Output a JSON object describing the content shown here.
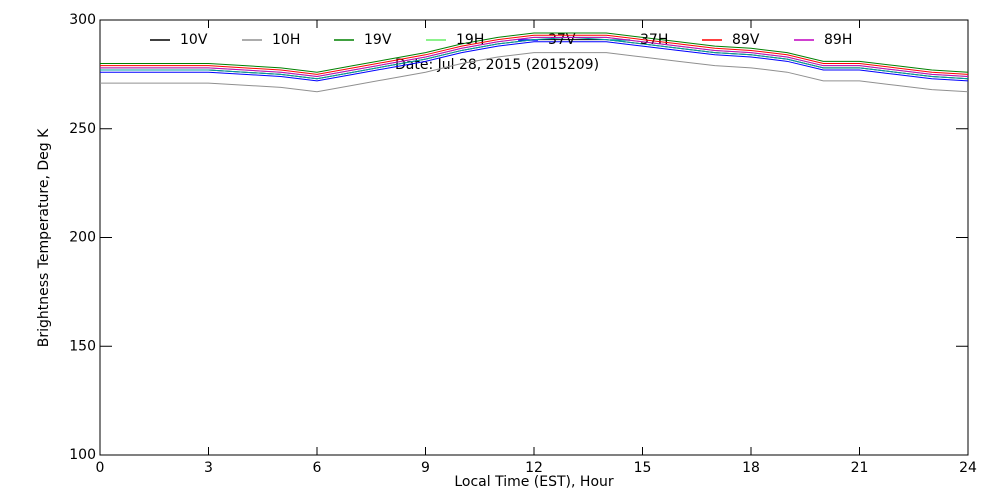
{
  "chart_data": {
    "type": "line",
    "x_label": "Local Time (EST), Hour",
    "y_label": "Brightness Temperature, Deg K",
    "annotation": "Date: Jul 28, 2015 (2015209)",
    "x": [
      0,
      1,
      2,
      3,
      4,
      5,
      6,
      7,
      8,
      9,
      10,
      11,
      12,
      13,
      14,
      15,
      16,
      17,
      18,
      19,
      20,
      21,
      22,
      23,
      24
    ],
    "xlim": [
      0,
      24
    ],
    "xticks": [
      0,
      3,
      6,
      9,
      12,
      15,
      18,
      21,
      24
    ],
    "ylim": [
      100,
      300
    ],
    "yticks": [
      100,
      150,
      200,
      250,
      300
    ],
    "series": [
      {
        "name": "10V",
        "color": "#000000",
        "values": [
          277,
          277,
          277,
          277,
          276,
          275,
          273,
          276,
          279,
          282,
          286,
          289,
          291,
          291,
          291,
          289,
          287,
          285,
          284,
          282,
          278,
          278,
          276,
          274,
          273
        ]
      },
      {
        "name": "10H",
        "color": "#909090",
        "values": [
          271,
          271,
          271,
          271,
          270,
          269,
          267,
          270,
          273,
          276,
          280,
          283,
          285,
          285,
          285,
          283,
          281,
          279,
          278,
          276,
          272,
          272,
          270,
          268,
          267
        ]
      },
      {
        "name": "19V",
        "color": "#008000",
        "values": [
          280,
          280,
          280,
          280,
          279,
          278,
          276,
          279,
          282,
          285,
          289,
          292,
          294,
          294,
          294,
          292,
          290,
          288,
          287,
          285,
          281,
          281,
          279,
          277,
          276
        ]
      },
      {
        "name": "19H",
        "color": "#66ee66",
        "values": [
          278,
          278,
          278,
          278,
          277,
          276,
          274,
          277,
          280,
          283,
          287,
          290,
          292,
          292,
          292,
          290,
          288,
          286,
          285,
          283,
          279,
          279,
          277,
          275,
          274
        ]
      },
      {
        "name": "37V",
        "color": "#0000ff",
        "values": [
          276,
          276,
          276,
          276,
          275,
          274,
          272,
          275,
          278,
          281,
          285,
          288,
          290,
          290,
          290,
          288,
          286,
          284,
          283,
          281,
          277,
          277,
          275,
          273,
          272
        ]
      },
      {
        "name": "37H",
        "color": "#00a0a0",
        "values": [
          277,
          277,
          277,
          277,
          276,
          275,
          273,
          276,
          279,
          282,
          286,
          289,
          291,
          292,
          291,
          289,
          287,
          285,
          284,
          282,
          278,
          278,
          276,
          274,
          273
        ]
      },
      {
        "name": "89V",
        "color": "#ff0000",
        "values": [
          279,
          279,
          279,
          279,
          278,
          277,
          275,
          278,
          281,
          284,
          288,
          291,
          293,
          293,
          293,
          291,
          289,
          287,
          286,
          284,
          280,
          280,
          278,
          276,
          275
        ]
      },
      {
        "name": "89H",
        "color": "#c000c0",
        "values": [
          278,
          278,
          278,
          278,
          277,
          276,
          274,
          277,
          280,
          283,
          287,
          290,
          292,
          292,
          292,
          290,
          288,
          286,
          285,
          283,
          279,
          279,
          277,
          275,
          274
        ]
      }
    ]
  }
}
